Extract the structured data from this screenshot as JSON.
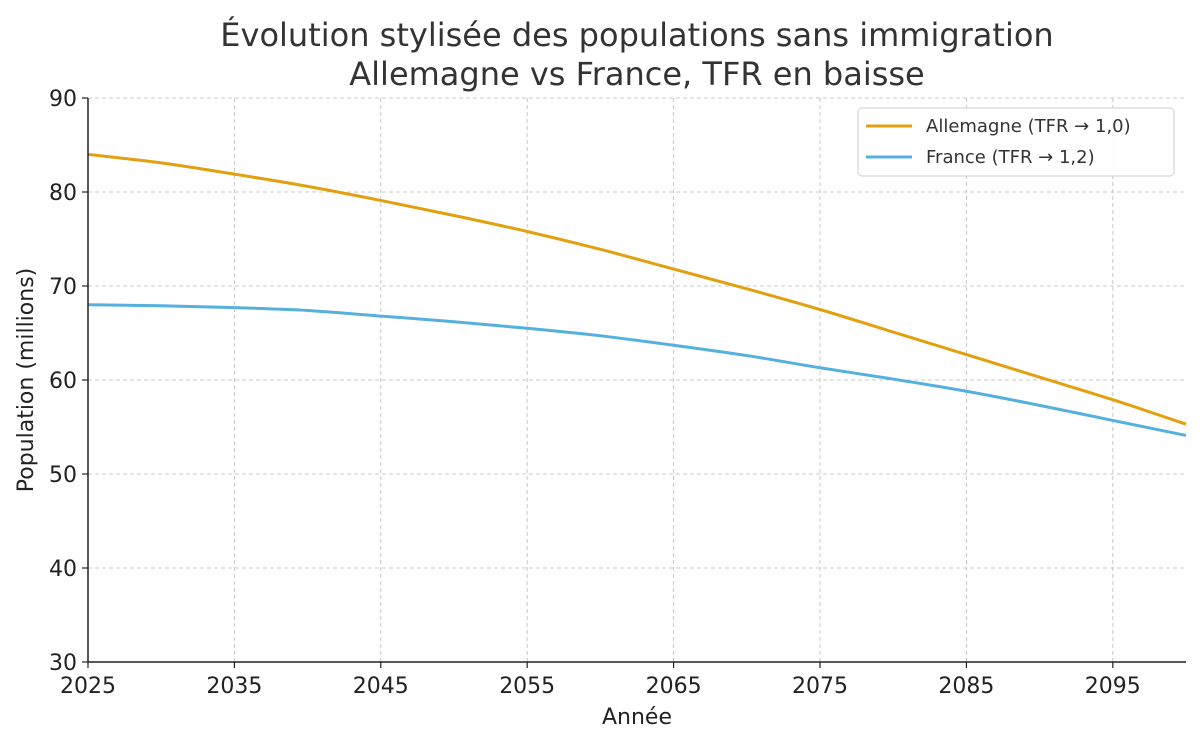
{
  "chart_data": {
    "type": "line",
    "title": [
      "Évolution stylisée des populations sans immigration",
      "Allemagne vs France, TFR en baisse"
    ],
    "xlabel": "Année",
    "ylabel": "Population (millions)",
    "xlim": [
      2025,
      2100
    ],
    "ylim": [
      30,
      90
    ],
    "xticks": [
      2025,
      2035,
      2045,
      2055,
      2065,
      2075,
      2085,
      2095
    ],
    "yticks": [
      30,
      40,
      50,
      60,
      70,
      80,
      90
    ],
    "grid": true,
    "legend_position": "top-right",
    "series": [
      {
        "name": "Allemagne (TFR → 1,0)",
        "color": "#e0a010",
        "x": [
          2025,
          2030,
          2035,
          2040,
          2045,
          2050,
          2055,
          2060,
          2065,
          2070,
          2075,
          2080,
          2085,
          2090,
          2095,
          2100
        ],
        "y": [
          84.0,
          83.1,
          81.9,
          80.6,
          79.1,
          77.5,
          75.8,
          73.9,
          71.8,
          69.7,
          67.5,
          65.1,
          62.7,
          60.3,
          57.9,
          55.3
        ]
      },
      {
        "name": "France (TFR → 1,2)",
        "color": "#56b0dd",
        "x": [
          2025,
          2030,
          2035,
          2040,
          2045,
          2050,
          2055,
          2060,
          2065,
          2070,
          2075,
          2080,
          2085,
          2090,
          2095,
          2100
        ],
        "y": [
          68.0,
          67.9,
          67.7,
          67.4,
          66.8,
          66.2,
          65.5,
          64.7,
          63.7,
          62.6,
          61.3,
          60.1,
          58.8,
          57.3,
          55.7,
          54.1
        ]
      }
    ]
  }
}
